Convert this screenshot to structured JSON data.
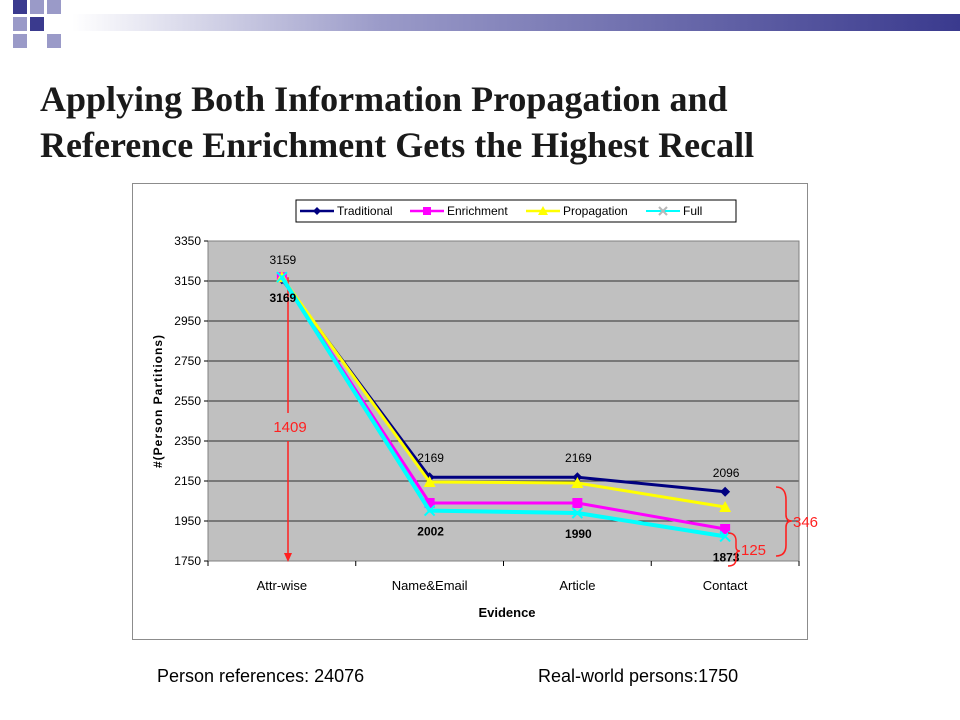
{
  "slide": {
    "title_line1": "Applying Both Information Propagation and",
    "title_line2": "Reference Enrichment Gets the Highest Recall",
    "footer_left": "Person references: 24076",
    "footer_right": "Real-world persons:1750",
    "accent_colors": [
      "#3a3a8e",
      "#9a9ac8"
    ]
  },
  "chart_data": {
    "type": "line",
    "categories": [
      "Attr-wise",
      "Name&Email",
      "Article",
      "Contact"
    ],
    "xlabel": "Evidence",
    "ylabel": "#(Person Partitions)",
    "ylim": [
      1750,
      3350
    ],
    "yticks": [
      1750,
      1950,
      2150,
      2350,
      2550,
      2750,
      2950,
      3150,
      3350
    ],
    "grid": true,
    "legend": "top",
    "plot_background": "#c0c0c0",
    "series": [
      {
        "name": "Traditional",
        "values": [
          3159,
          2169,
          2169,
          2096
        ],
        "color": "#000080",
        "marker": "diamond"
      },
      {
        "name": "Enrichment",
        "values": [
          3169,
          2040,
          2040,
          1910
        ],
        "color": "#ff00ff",
        "marker": "square"
      },
      {
        "name": "Propagation",
        "values": [
          3169,
          2145,
          2140,
          2020
        ],
        "color": "#ffff00",
        "marker": "triangle"
      },
      {
        "name": "Full",
        "values": [
          3169,
          2002,
          1990,
          1873
        ],
        "color": "#00ffff",
        "marker": "x"
      }
    ],
    "data_labels": [
      {
        "text": "3159",
        "series": 0,
        "index": 0,
        "pos": "above",
        "bold": false
      },
      {
        "text": "2169",
        "series": 0,
        "index": 1,
        "pos": "above",
        "bold": false
      },
      {
        "text": "2169",
        "series": 0,
        "index": 2,
        "pos": "above",
        "bold": false
      },
      {
        "text": "2096",
        "series": 0,
        "index": 3,
        "pos": "above",
        "bold": false
      },
      {
        "text": "3169",
        "series": 3,
        "index": 0,
        "pos": "below",
        "bold": true
      },
      {
        "text": "2002",
        "series": 3,
        "index": 1,
        "pos": "below",
        "bold": true
      },
      {
        "text": "1990",
        "series": 3,
        "index": 2,
        "pos": "below",
        "bold": true
      },
      {
        "text": "1873",
        "series": 3,
        "index": 3,
        "pos": "below",
        "bold": true
      }
    ],
    "annotations": {
      "drop_label": "1409",
      "gap_small_label": "125",
      "gap_large_label": "346",
      "annotation_color": "#ff2020"
    }
  }
}
